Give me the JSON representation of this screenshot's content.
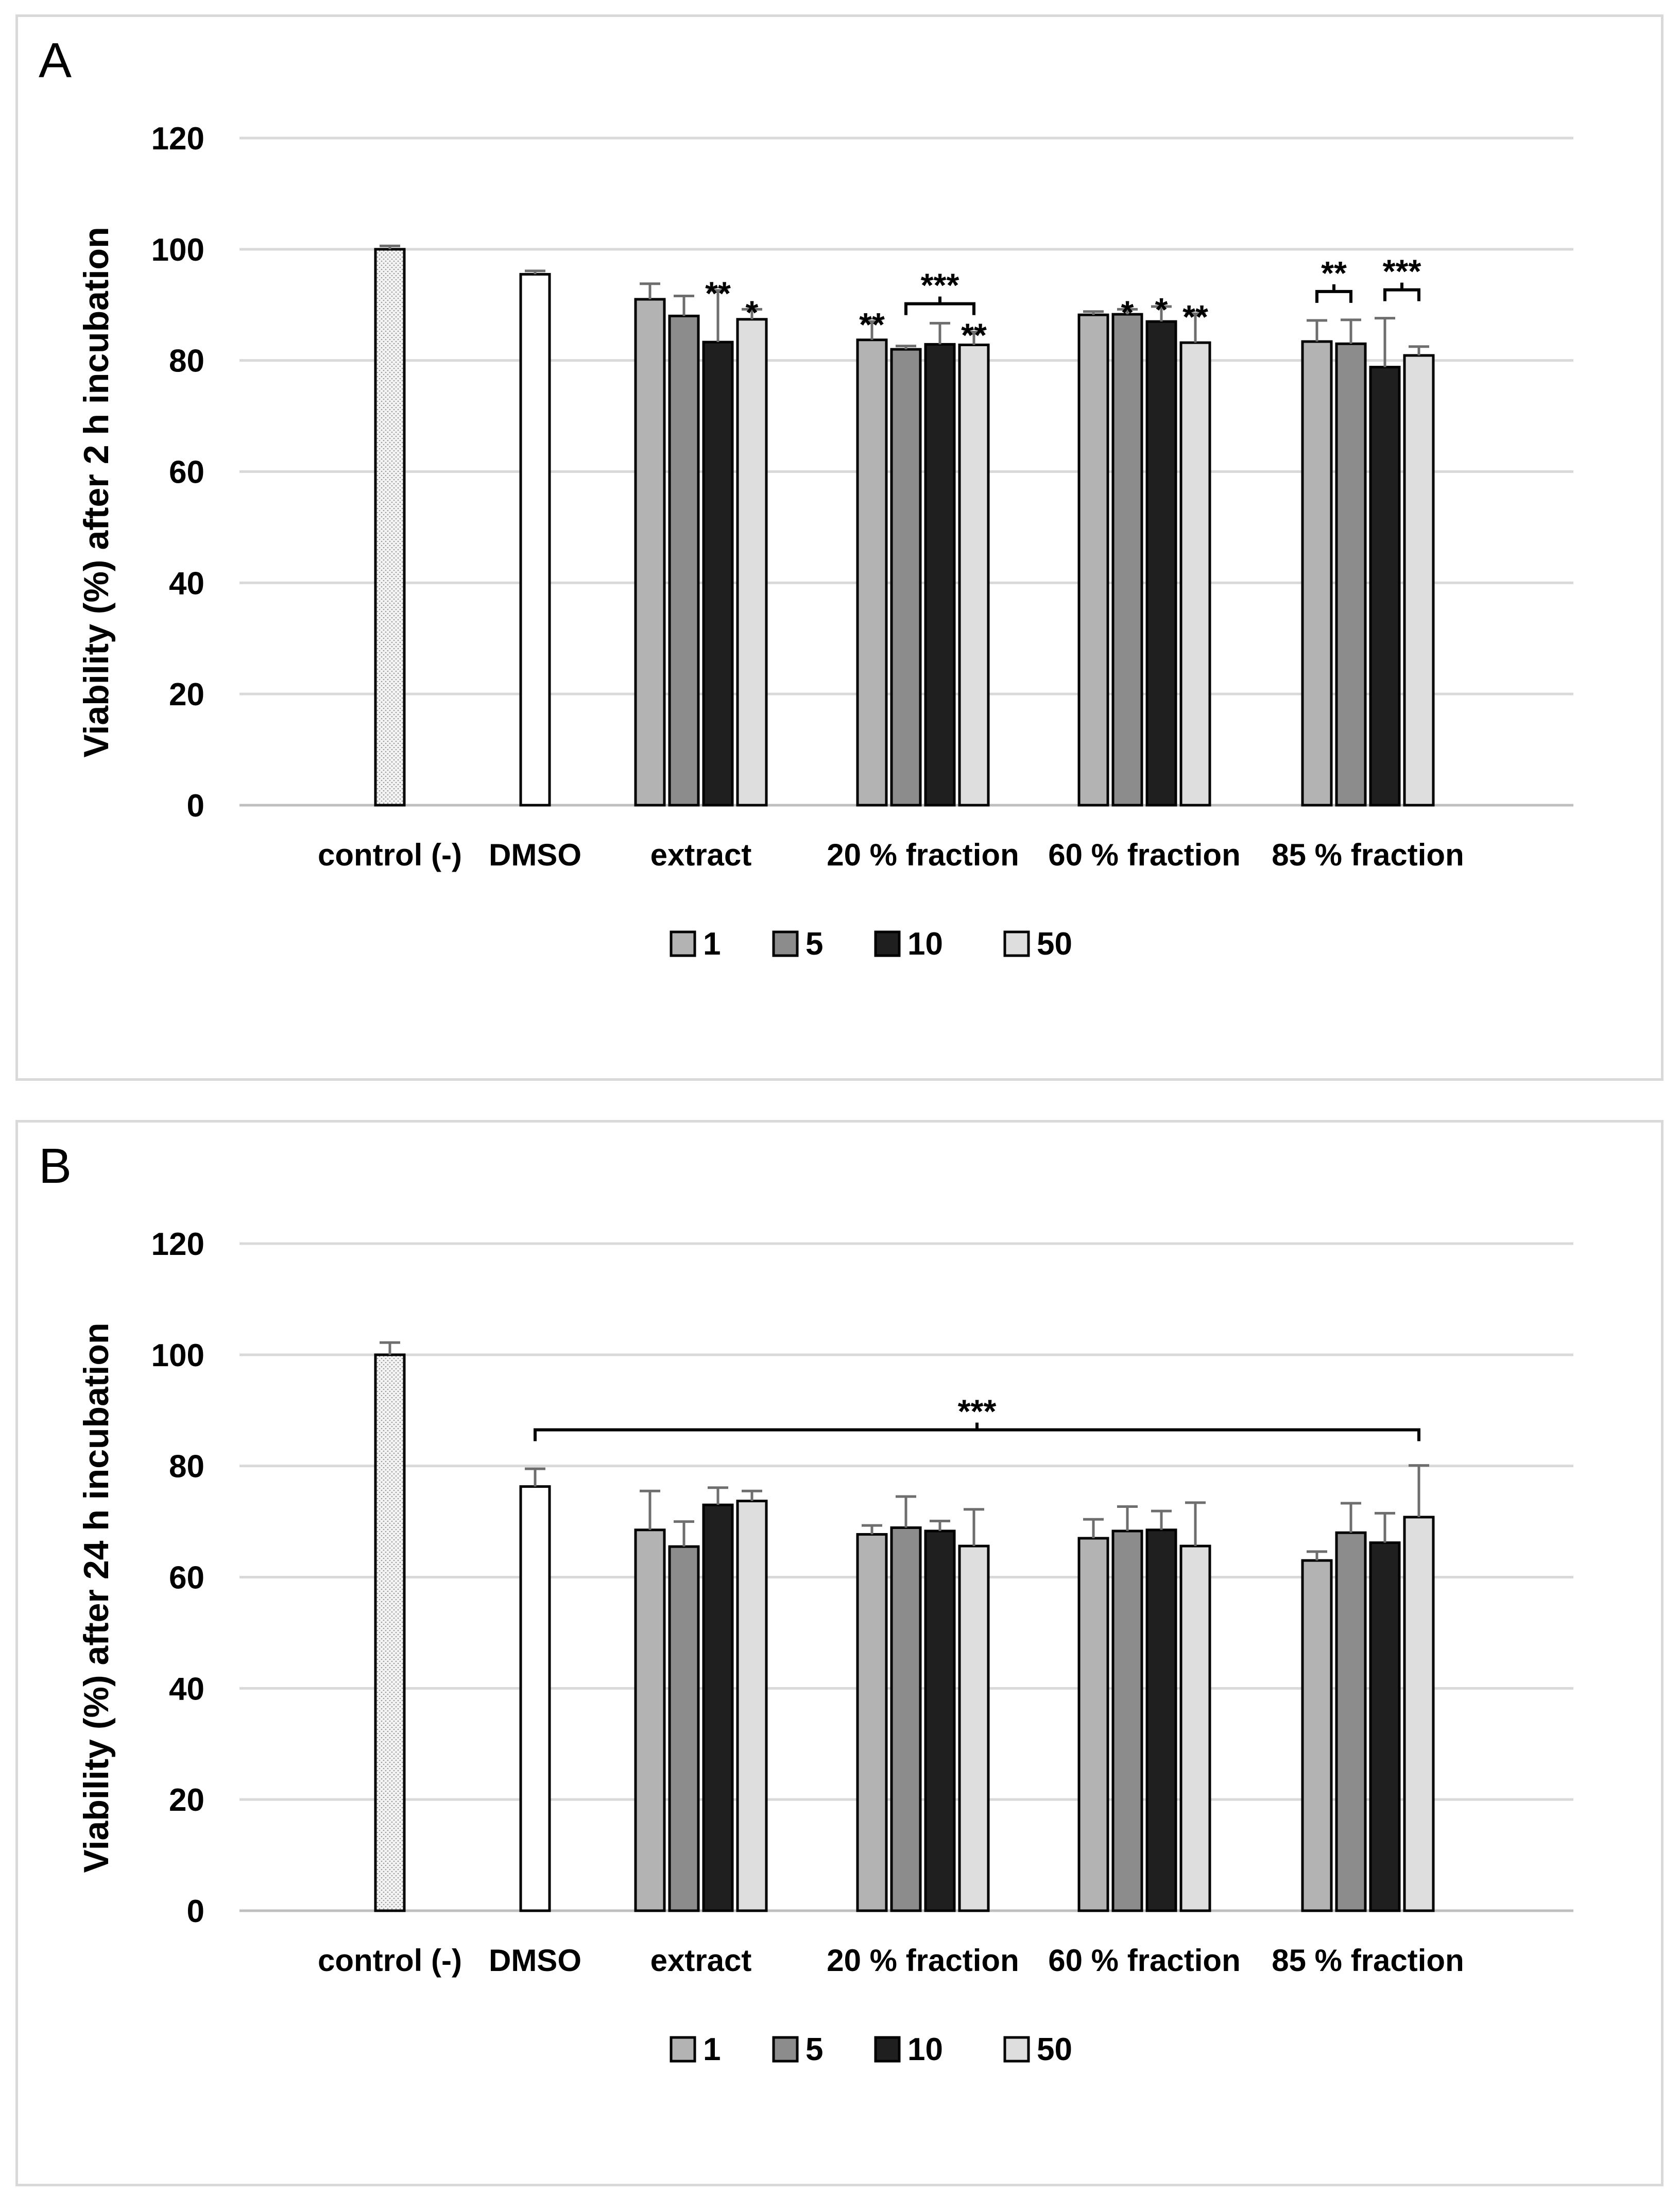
{
  "chart_data": [
    {
      "panel": "A",
      "type": "bar",
      "ylabel": "Viability (%) after 2 h incubation",
      "xlabel": "",
      "ylim": [
        0,
        120
      ],
      "yticks": [
        0,
        20,
        40,
        60,
        80,
        100,
        120
      ],
      "grid": true,
      "legend_position": "bottom",
      "categories": [
        "control (-)",
        "DMSO",
        "extract",
        "20 % fraction",
        "60 % fraction",
        "85 % fraction"
      ],
      "single_bars": [
        {
          "category": "control (-)",
          "value": 100,
          "error": 0.6,
          "pattern": "dotted"
        },
        {
          "category": "DMSO",
          "value": 95.5,
          "error": 0.6,
          "pattern": "white"
        }
      ],
      "series": [
        {
          "name": "1",
          "color": "#b3b3b3",
          "values": [
            null,
            null,
            91,
            83.7,
            88.2,
            83.4
          ],
          "errors": [
            null,
            null,
            2.8,
            3.3,
            0.6,
            3.8
          ]
        },
        {
          "name": "5",
          "color": "#8c8c8c",
          "values": [
            null,
            null,
            88,
            82,
            88.3,
            83
          ],
          "errors": [
            null,
            null,
            3.6,
            0.6,
            0.9,
            4.3
          ]
        },
        {
          "name": "10",
          "color": "#1f1f1f",
          "values": [
            null,
            null,
            83.3,
            82.9,
            87,
            78.8
          ],
          "errors": [
            null,
            null,
            9.3,
            3.8,
            2.7,
            8.8
          ]
        },
        {
          "name": "50",
          "color": "#dedede",
          "values": [
            null,
            null,
            87.4,
            82.8,
            83.2,
            80.9
          ],
          "errors": [
            null,
            null,
            1.8,
            2.3,
            5.2,
            1.6
          ]
        }
      ],
      "annotations": [
        {
          "text": "**",
          "category": "extract",
          "series": "10"
        },
        {
          "text": "*",
          "category": "extract",
          "series": "50"
        },
        {
          "text": "**",
          "category": "20 % fraction",
          "series": "1"
        },
        {
          "text": "***",
          "category": "20 % fraction",
          "bracket": [
            "5",
            "50"
          ]
        },
        {
          "text": "**",
          "category": "20 % fraction",
          "series": "50"
        },
        {
          "text": "*",
          "category": "60 % fraction",
          "series": "5"
        },
        {
          "text": "*",
          "category": "60 % fraction",
          "series": "10"
        },
        {
          "text": "**",
          "category": "60 % fraction",
          "series": "50"
        },
        {
          "text": "**",
          "category": "85 % fraction",
          "bracket": [
            "1",
            "5"
          ]
        },
        {
          "text": "***",
          "category": "85 % fraction",
          "bracket": [
            "10",
            "50"
          ]
        }
      ]
    },
    {
      "panel": "B",
      "type": "bar",
      "ylabel": "Viability (%) after 24 h incubation",
      "xlabel": "",
      "ylim": [
        0,
        120
      ],
      "yticks": [
        0,
        20,
        40,
        60,
        80,
        100,
        120
      ],
      "grid": true,
      "legend_position": "bottom",
      "categories": [
        "control (-)",
        "DMSO",
        "extract",
        "20 % fraction",
        "60 % fraction",
        "85 % fraction"
      ],
      "single_bars": [
        {
          "category": "control (-)",
          "value": 100,
          "error": 2.2,
          "pattern": "dotted"
        },
        {
          "category": "DMSO",
          "value": 76.3,
          "error": 3.2,
          "pattern": "white"
        }
      ],
      "series": [
        {
          "name": "1",
          "color": "#b3b3b3",
          "values": [
            null,
            null,
            68.5,
            67.7,
            67,
            63
          ],
          "errors": [
            null,
            null,
            7,
            1.6,
            3.4,
            1.6
          ]
        },
        {
          "name": "5",
          "color": "#8c8c8c",
          "values": [
            null,
            null,
            65.5,
            68.9,
            68.3,
            68
          ],
          "errors": [
            null,
            null,
            4.5,
            5.6,
            4.4,
            5.3
          ]
        },
        {
          "name": "10",
          "color": "#1f1f1f",
          "values": [
            null,
            null,
            73,
            68.3,
            68.5,
            66.2
          ],
          "errors": [
            null,
            null,
            3.1,
            1.8,
            3.4,
            5.3
          ]
        },
        {
          "name": "50",
          "color": "#dedede",
          "values": [
            null,
            null,
            73.7,
            65.6,
            65.6,
            70.8
          ],
          "errors": [
            null,
            null,
            1.8,
            6.6,
            7.8,
            9.3
          ]
        }
      ],
      "annotations": [
        {
          "text": "***",
          "bracket_from": "DMSO",
          "bracket_to": "85 % fraction"
        }
      ]
    }
  ],
  "panels": [
    {
      "letter": "A"
    },
    {
      "letter": "B"
    }
  ],
  "legend": {
    "items": [
      "1",
      "5",
      "10",
      "50"
    ]
  }
}
